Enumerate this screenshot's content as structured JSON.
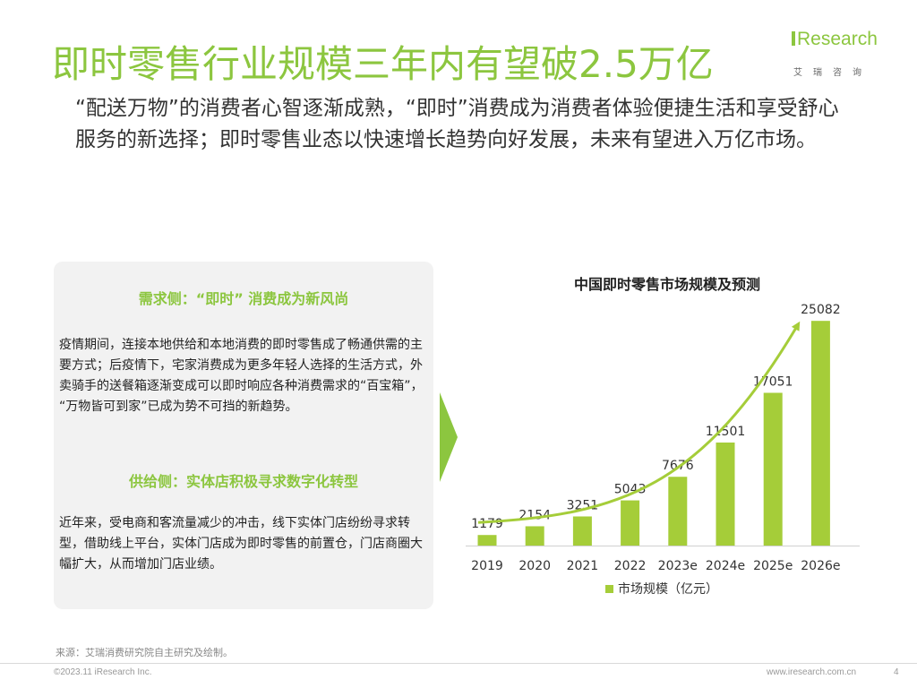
{
  "header": {
    "title": "即时零售行业规模三年内有望破2.5万亿",
    "subtitle": "“配送万物”的消费者心智逐渐成熟，“即时”消费成为消费者体验便捷生活和享受舒心服务的新选择；即时零售业态以快速增长趋势向好发展，未来有望进入万亿市场。"
  },
  "logo": {
    "brand": "Research",
    "sub": "艾瑞咨询"
  },
  "panel": {
    "demand_heading": "需求侧：“即时” 消费成为新风尚",
    "demand_text": "疫情期间，连接本地供给和本地消费的即时零售成了畅通供需的主要方式；后疫情下，宅家消费成为更多年轻人选择的生活方式，外卖骑手的送餐箱逐渐变成可以即时响应各种消费需求的“百宝箱”， “万物皆可到家”已成为势不可挡的新趋势。",
    "supply_heading": "供给侧：实体店积极寻求数字化转型",
    "supply_text": "近年来，受电商和客流量减少的冲击，线下实体门店纷纷寻求转型，借助线上平台，实体门店成为即时零售的前置仓，门店商圈大幅扩大，从而增加门店业绩。"
  },
  "chart_data": {
    "type": "bar",
    "title": "中国即时零售市场规模及预测",
    "categories": [
      "2019",
      "2020",
      "2021",
      "2022",
      "2023e",
      "2024e",
      "2025e",
      "2026e"
    ],
    "series": [
      {
        "name": "市场规模（亿元）",
        "values": [
          1179,
          2154,
          3251,
          5043,
          7676,
          11501,
          17051,
          25082
        ]
      }
    ],
    "ylim": [
      0,
      27000
    ],
    "legend_position": "bottom",
    "data_labels": true,
    "bar_color": "#a5cd39",
    "trend_arrow": true,
    "trend_color": "#a5cd39"
  },
  "footer": {
    "source": "来源：艾瑞消费研究院自主研究及绘制。",
    "copyright": "©2023.11 iResearch Inc.",
    "website": "www.iresearch.com.cn",
    "page": "4"
  },
  "colors": {
    "accent": "#8cc63f",
    "panel_bg": "#f2f2f2"
  }
}
